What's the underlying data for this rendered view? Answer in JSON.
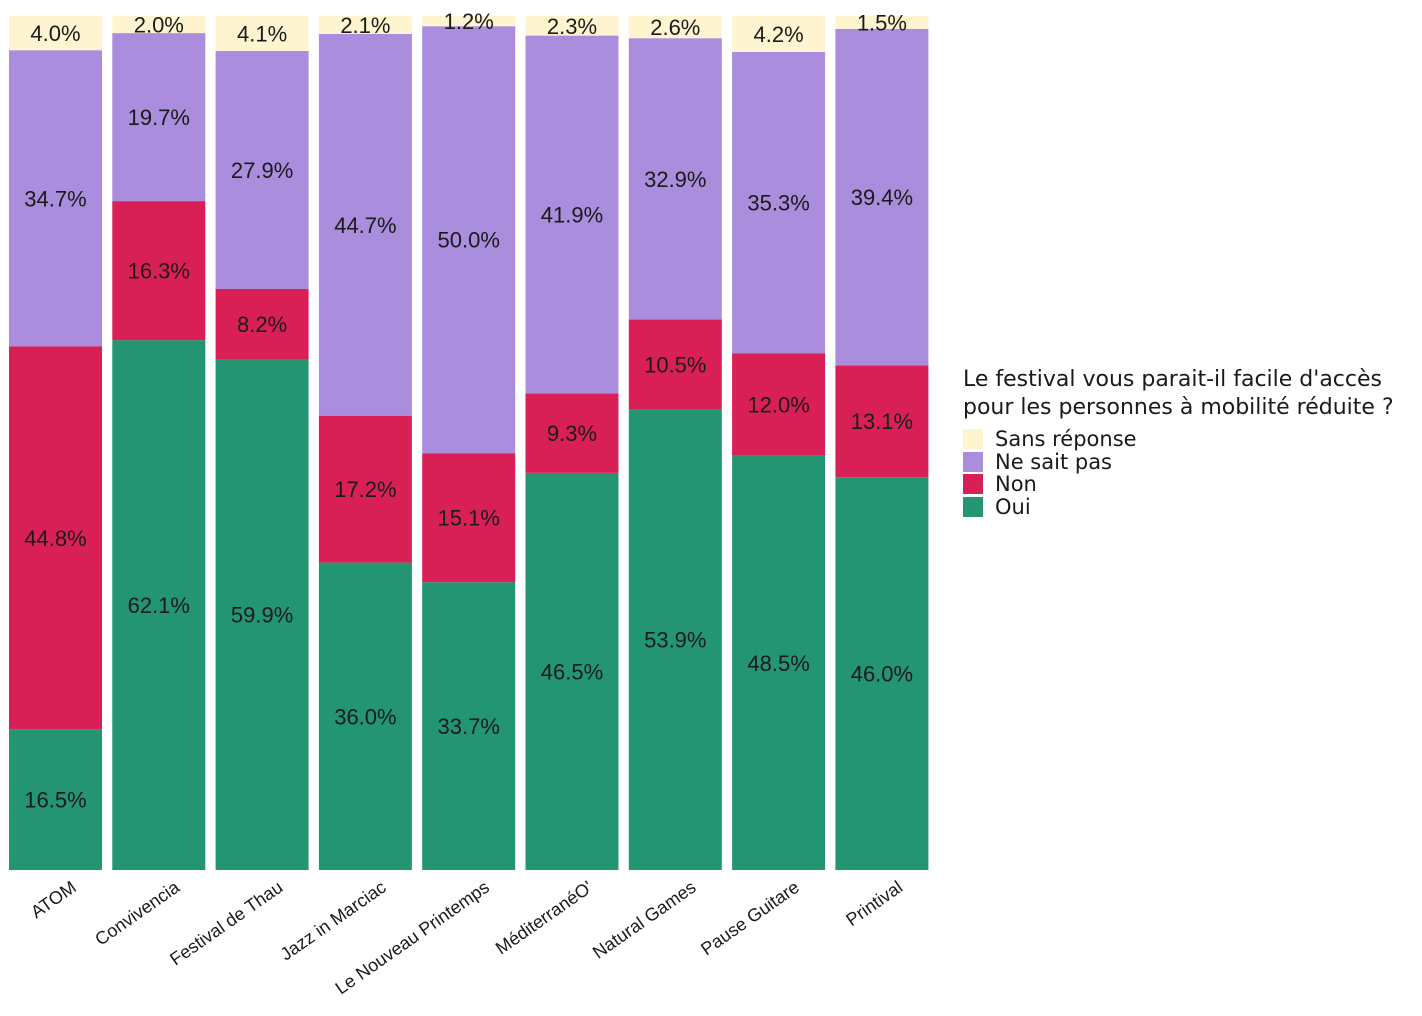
{
  "chart_data": {
    "type": "bar",
    "stacked": true,
    "normalized": true,
    "categories": [
      "ATOM",
      "Convivencia",
      "Festival de Thau",
      "Jazz in Marciac",
      "Le Nouveau Printemps",
      "MéditerranéO'",
      "Natural Games",
      "Pause Guitare",
      "Printival"
    ],
    "series": [
      {
        "name": "Oui",
        "color": "#239572",
        "values": [
          16.5,
          62.1,
          59.9,
          36.0,
          33.7,
          46.5,
          53.9,
          48.5,
          46.0
        ],
        "labels": [
          "16.5%",
          "62.1%",
          "59.9%",
          "36.0%",
          "33.7%",
          "46.5%",
          "53.9%",
          "48.5%",
          "46.0%"
        ]
      },
      {
        "name": "Non",
        "color": "#d82057",
        "values": [
          44.8,
          16.3,
          8.2,
          17.2,
          15.1,
          9.3,
          10.5,
          12.0,
          13.1
        ],
        "labels": [
          "44.8%",
          "16.3%",
          "8.2%",
          "17.2%",
          "15.1%",
          "9.3%",
          "10.5%",
          "12.0%",
          "13.1%"
        ]
      },
      {
        "name": "Ne sait pas",
        "color": "#aa8ddd",
        "values": [
          34.7,
          19.7,
          27.9,
          44.7,
          50.0,
          41.9,
          32.9,
          35.3,
          39.4
        ],
        "labels": [
          "34.7%",
          "19.7%",
          "27.9%",
          "44.7%",
          "50.0%",
          "41.9%",
          "32.9%",
          "35.3%",
          "39.4%"
        ]
      },
      {
        "name": "Sans réponse",
        "color": "#fef5d0",
        "values": [
          4.0,
          2.0,
          4.1,
          2.1,
          1.2,
          2.3,
          2.6,
          4.2,
          1.5
        ],
        "labels": [
          "4.0%",
          "2.0%",
          "4.1%",
          "2.1%",
          "1.2%",
          "2.3%",
          "2.6%",
          "4.2%",
          "1.5%"
        ]
      }
    ],
    "ylim": [
      0,
      100
    ],
    "grid": false,
    "legend_position": "right"
  },
  "legend": {
    "title_line1": "Le festival vous parait-il facile d'accès",
    "title_line2": "pour les personnes à mobilité réduite ?",
    "items": [
      {
        "label": "Sans réponse",
        "color": "#fef5d0"
      },
      {
        "label": "Ne sait pas",
        "color": "#aa8ddd"
      },
      {
        "label": "Non",
        "color": "#d82057"
      },
      {
        "label": "Oui",
        "color": "#239572"
      }
    ]
  }
}
